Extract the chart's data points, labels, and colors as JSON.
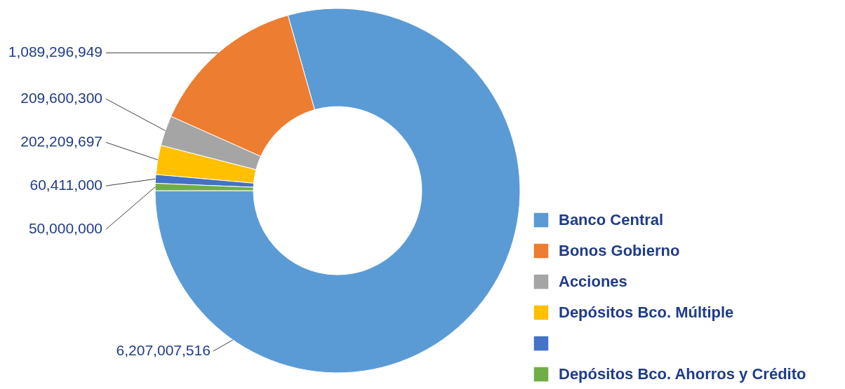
{
  "chart_data": {
    "type": "donut",
    "categories": [
      "Banco Central",
      "Bonos Gobierno",
      "Acciones",
      "Depósitos Bco. Múltiple",
      null,
      "Depósitos Bco. Ahorros y Crédito"
    ],
    "values": [
      6207007516,
      1089296949,
      209600300,
      202209697,
      60411000,
      50000000
    ],
    "colors": [
      "#5b9bd5",
      "#ed7d31",
      "#a5a5a5",
      "#ffc000",
      "#4472c4",
      "#70ad47"
    ],
    "value_labels": [
      "6,207,007,516",
      "1,089,296,949",
      "209,600,300",
      "202,209,697",
      "60,411,000",
      "50,000,000"
    ],
    "legend": "bottom right"
  }
}
